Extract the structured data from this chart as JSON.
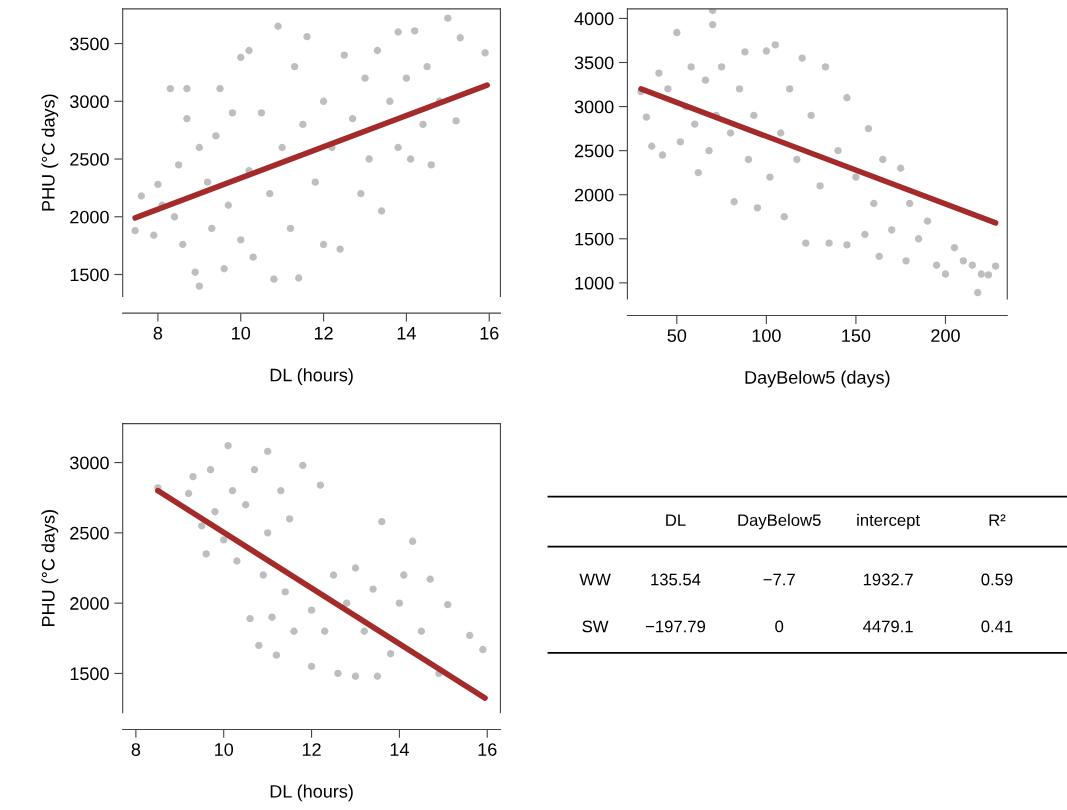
{
  "chart_data": [
    {
      "type": "scatter",
      "xlabel": "DL (hours)",
      "ylabel": "PHU (°C days)",
      "xlim": [
        7.15,
        16.27
      ],
      "ylim": [
        1310,
        3800
      ],
      "xticks": [
        8,
        10,
        12,
        14,
        16
      ],
      "yticks": [
        1500,
        2000,
        2500,
        3000,
        3500
      ],
      "series": [
        {
          "type": "scatter",
          "color": "#bebebe",
          "marker": "circle",
          "x": [
            7.45,
            7.6,
            7.9,
            8.0,
            8.1,
            8.3,
            8.4,
            8.5,
            8.6,
            8.7,
            8.7,
            8.9,
            9.0,
            9.0,
            9.2,
            9.3,
            9.4,
            9.5,
            9.6,
            9.7,
            9.8,
            10.0,
            10.0,
            10.2,
            10.2,
            10.3,
            10.5,
            10.7,
            10.8,
            10.9,
            11.0,
            11.2,
            11.3,
            11.4,
            11.5,
            11.6,
            11.8,
            12.0,
            12.0,
            12.2,
            12.4,
            12.5,
            12.7,
            12.9,
            13.0,
            13.1,
            13.3,
            13.4,
            13.6,
            13.8,
            13.8,
            14.0,
            14.1,
            14.2,
            14.4,
            14.5,
            14.6,
            14.8,
            15.0,
            15.2,
            15.3,
            15.9
          ],
          "values": [
            1880,
            2180,
            1840,
            2280,
            2100,
            3110,
            2000,
            2450,
            1760,
            2850,
            3110,
            1520,
            1400,
            2600,
            2300,
            1900,
            2700,
            3110,
            1550,
            2100,
            2900,
            1800,
            3380,
            2400,
            3440,
            1650,
            2900,
            2200,
            1460,
            3650,
            2600,
            1900,
            3300,
            1470,
            2800,
            3560,
            2300,
            1760,
            3000,
            2600,
            1720,
            3400,
            2850,
            2200,
            3200,
            2500,
            3440,
            2050,
            3000,
            2600,
            3600,
            3200,
            2500,
            3610,
            2800,
            3300,
            2450,
            3000,
            3720,
            2830,
            3550,
            3420
          ]
        },
        {
          "type": "line",
          "color": "#a52a2a",
          "marker": "none",
          "x": [
            7.45,
            15.95
          ],
          "values": [
            1990,
            3140
          ]
        }
      ]
    },
    {
      "type": "scatter",
      "xlabel": "DayBelow5 (days)",
      "xlim": [
        22.4,
        234.5
      ],
      "ylim": [
        818,
        4108
      ],
      "xticks": [
        50,
        100,
        150,
        200
      ],
      "yticks": [
        1000,
        1500,
        2000,
        2500,
        3000,
        3500,
        4000
      ],
      "series": [
        {
          "type": "scatter",
          "color": "#bebebe",
          "marker": "circle",
          "x": [
            30,
            33,
            36,
            40,
            42,
            45,
            50,
            52,
            55,
            58,
            60,
            62,
            66,
            68,
            70,
            70,
            72,
            75,
            80,
            82,
            85,
            88,
            90,
            93,
            95,
            100,
            102,
            105,
            108,
            110,
            113,
            117,
            120,
            122,
            125,
            130,
            133,
            135,
            140,
            145,
            145,
            150,
            155,
            157,
            160,
            163,
            165,
            170,
            175,
            178,
            180,
            185,
            190,
            195,
            200,
            205,
            210,
            215,
            218,
            220,
            224,
            228
          ],
          "values": [
            3170,
            2880,
            2550,
            3380,
            2450,
            3200,
            3840,
            2600,
            3000,
            3450,
            2800,
            2250,
            3300,
            2500,
            4090,
            3930,
            2900,
            3450,
            2700,
            1920,
            3200,
            3620,
            2400,
            2900,
            1850,
            3630,
            2200,
            3700,
            2700,
            1750,
            3200,
            2400,
            3550,
            1450,
            2900,
            2100,
            3450,
            1450,
            2500,
            1430,
            3100,
            2200,
            1550,
            2750,
            1900,
            1300,
            2400,
            1600,
            2300,
            1250,
            1900,
            1500,
            1700,
            1200,
            1100,
            1400,
            1250,
            1200,
            890,
            1100,
            1090,
            1190
          ]
        },
        {
          "type": "line",
          "color": "#a52a2a",
          "marker": "none",
          "x": [
            30,
            228
          ],
          "values": [
            3200,
            1680
          ]
        }
      ]
    },
    {
      "type": "scatter",
      "xlabel": "DL (hours)",
      "ylabel": "PHU (°C days)",
      "xlim": [
        7.7,
        16.3
      ],
      "ylim": [
        1220,
        3277
      ],
      "xticks": [
        8,
        10,
        12,
        14,
        16
      ],
      "yticks": [
        1500,
        2000,
        2500,
        3000
      ],
      "series": [
        {
          "type": "scatter",
          "color": "#bebebe",
          "marker": "circle",
          "x": [
            8.5,
            9.2,
            9.3,
            9.5,
            9.6,
            9.7,
            9.8,
            10.0,
            10.1,
            10.2,
            10.3,
            10.5,
            10.6,
            10.7,
            10.8,
            10.9,
            11.0,
            11.0,
            11.1,
            11.2,
            11.3,
            11.4,
            11.5,
            11.6,
            11.8,
            12.0,
            12.0,
            12.2,
            12.3,
            12.5,
            12.6,
            12.8,
            13.0,
            13.0,
            13.2,
            13.4,
            13.5,
            13.6,
            13.8,
            14.0,
            14.1,
            14.3,
            14.5,
            14.7,
            14.9,
            15.1,
            15.6,
            15.9
          ],
          "values": [
            2820,
            2780,
            2900,
            2550,
            2350,
            2950,
            2650,
            2450,
            3120,
            2800,
            2300,
            2700,
            1890,
            2950,
            1700,
            2200,
            3080,
            2500,
            1900,
            1630,
            2800,
            2080,
            2600,
            1800,
            2980,
            1950,
            1550,
            2840,
            1800,
            2200,
            1500,
            2000,
            1480,
            2250,
            1800,
            2100,
            1480,
            2580,
            1640,
            2000,
            2200,
            2440,
            1800,
            2170,
            1500,
            1990,
            1770,
            1670
          ]
        },
        {
          "type": "line",
          "color": "#a52a2a",
          "marker": "none",
          "x": [
            8.5,
            15.95
          ],
          "values": [
            2800,
            1325
          ]
        }
      ]
    },
    {
      "type": "other",
      "categories": [
        null,
        "DL",
        "DayBelow5",
        "intercept",
        "R²"
      ],
      "y_categories": [
        "WW",
        "SW"
      ],
      "cell_labels": [
        [
          "135.54",
          "−7.7",
          "1932.7",
          "0.59"
        ],
        [
          "−197.79",
          "0",
          "4479.1",
          "0.41"
        ]
      ]
    }
  ]
}
